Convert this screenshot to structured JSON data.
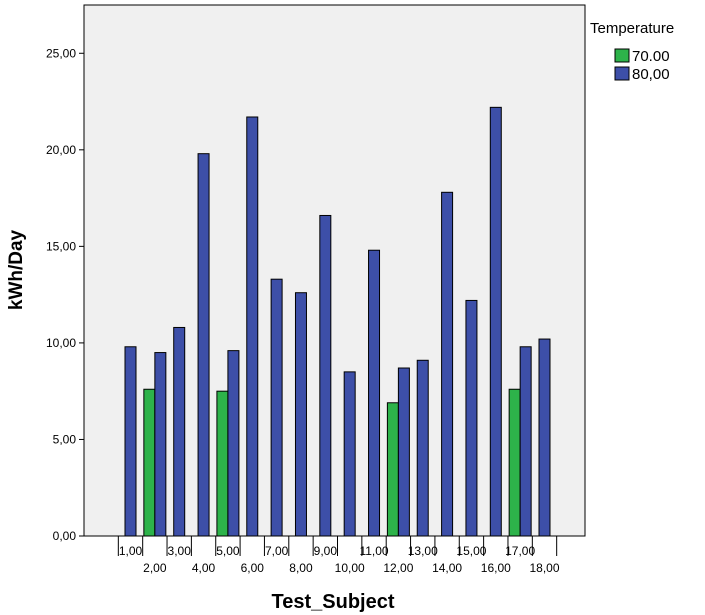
{
  "chart_data": {
    "type": "bar",
    "title": "",
    "xlabel": "Test_Subject",
    "ylabel": "kWh/Day",
    "ylim": [
      0,
      27.5
    ],
    "yticks": [
      "0,00",
      "5,00",
      "10,00",
      "15,00",
      "20,00",
      "25,00"
    ],
    "ytick_values": [
      0,
      5,
      10,
      15,
      20,
      25
    ],
    "categories": [
      "1,00",
      "2,00",
      "3,00",
      "4,00",
      "5,00",
      "6,00",
      "7,00",
      "8,00",
      "9,00",
      "10,00",
      "11,00",
      "12,00",
      "13,00",
      "14,00",
      "15,00",
      "16,00",
      "17,00",
      "18,00"
    ],
    "legend": {
      "title": "Temperature",
      "placement": "right"
    },
    "series": [
      {
        "name": "70.00",
        "color": "#2db34a",
        "values": [
          null,
          7.6,
          null,
          null,
          7.5,
          null,
          null,
          null,
          null,
          null,
          null,
          6.9,
          null,
          null,
          null,
          null,
          7.6,
          null
        ]
      },
      {
        "name": "80,00",
        "color": "#3d4fa8",
        "values": [
          9.8,
          9.5,
          10.8,
          19.8,
          9.6,
          21.7,
          13.3,
          12.6,
          16.6,
          8.5,
          14.8,
          8.7,
          9.1,
          17.8,
          12.2,
          22.2,
          9.8,
          10.2
        ]
      }
    ],
    "plot_background": "#f0f0f0",
    "grid": false
  }
}
